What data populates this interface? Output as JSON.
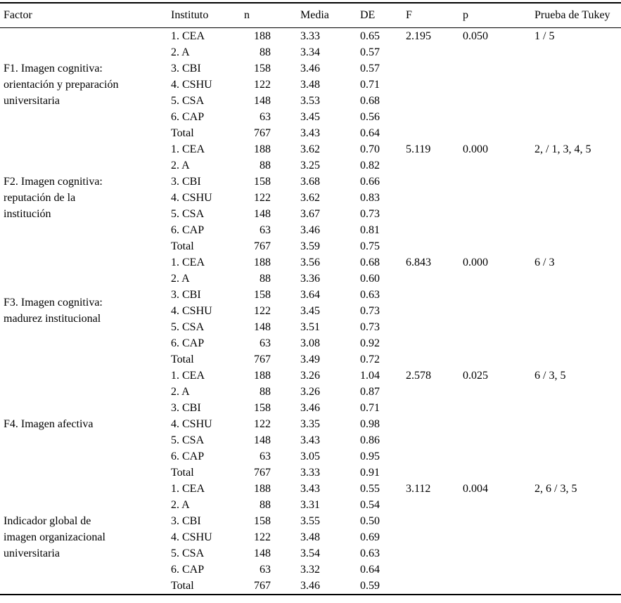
{
  "table": {
    "headers": [
      "Factor",
      "Instituto",
      "n",
      "Media",
      "DE",
      "F",
      "p",
      "Prueba de Tukey"
    ],
    "groups": [
      {
        "factor_lines": [
          "F1. Imagen cognitiva:",
          "orientación y preparación",
          "universitaria"
        ],
        "f": "2.195",
        "p": "0.050",
        "tukey": "1 / 5",
        "rows": [
          {
            "instituto": "1. CEA",
            "n": "188",
            "media": "3.33",
            "de": "0.65"
          },
          {
            "instituto": "2. A",
            "n": "88",
            "media": "3.34",
            "de": "0.57"
          },
          {
            "instituto": "3. CBI",
            "n": "158",
            "media": "3.46",
            "de": "0.57"
          },
          {
            "instituto": "4. CSHU",
            "n": "122",
            "media": "3.48",
            "de": "0.71"
          },
          {
            "instituto": "5. CSA",
            "n": "148",
            "media": "3.53",
            "de": "0.68"
          },
          {
            "instituto": "6. CAP",
            "n": "63",
            "media": "3.45",
            "de": "0.56"
          },
          {
            "instituto": "Total",
            "n": "767",
            "media": "3.43",
            "de": "0.64"
          }
        ]
      },
      {
        "factor_lines": [
          "F2. Imagen cognitiva:",
          "reputación de la",
          "institución"
        ],
        "f": "5.119",
        "p": "0.000",
        "tukey": "2, / 1, 3, 4, 5",
        "rows": [
          {
            "instituto": "1. CEA",
            "n": "188",
            "media": "3.62",
            "de": "0.70"
          },
          {
            "instituto": "2. A",
            "n": "88",
            "media": "3.25",
            "de": "0.82"
          },
          {
            "instituto": "3. CBI",
            "n": "158",
            "media": "3.68",
            "de": "0.66"
          },
          {
            "instituto": "4. CSHU",
            "n": "122",
            "media": "3.62",
            "de": "0.83"
          },
          {
            "instituto": "5. CSA",
            "n": "148",
            "media": "3.67",
            "de": "0.73"
          },
          {
            "instituto": "6. CAP",
            "n": "63",
            "media": "3.46",
            "de": "0.81"
          },
          {
            "instituto": "Total",
            "n": "767",
            "media": "3.59",
            "de": "0.75"
          }
        ]
      },
      {
        "factor_lines": [
          "F3. Imagen cognitiva:",
          "madurez institucional"
        ],
        "f": "6.843",
        "p": "0.000",
        "tukey": "6 / 3",
        "rows": [
          {
            "instituto": "1. CEA",
            "n": "188",
            "media": "3.56",
            "de": "0.68"
          },
          {
            "instituto": "2. A",
            "n": "88",
            "media": "3.36",
            "de": "0.60"
          },
          {
            "instituto": "3. CBI",
            "n": "158",
            "media": "3.64",
            "de": "0.63"
          },
          {
            "instituto": "4. CSHU",
            "n": "122",
            "media": "3.45",
            "de": "0.73"
          },
          {
            "instituto": "5. CSA",
            "n": "148",
            "media": "3.51",
            "de": "0.73"
          },
          {
            "instituto": "6. CAP",
            "n": "63",
            "media": "3.08",
            "de": "0.92"
          },
          {
            "instituto": "Total",
            "n": "767",
            "media": "3.49",
            "de": "0.72"
          }
        ]
      },
      {
        "factor_lines": [
          "F4. Imagen afectiva"
        ],
        "f": "2.578",
        "p": "0.025",
        "tukey": "6 / 3, 5",
        "rows": [
          {
            "instituto": "1. CEA",
            "n": "188",
            "media": "3.26",
            "de": "1.04"
          },
          {
            "instituto": "2. A",
            "n": "88",
            "media": "3.26",
            "de": "0.87"
          },
          {
            "instituto": "3. CBI",
            "n": "158",
            "media": "3.46",
            "de": "0.71"
          },
          {
            "instituto": "4. CSHU",
            "n": "122",
            "media": "3.35",
            "de": "0.98"
          },
          {
            "instituto": "5. CSA",
            "n": "148",
            "media": "3.43",
            "de": "0.86"
          },
          {
            "instituto": "6. CAP",
            "n": "63",
            "media": "3.05",
            "de": "0.95"
          },
          {
            "instituto": "Total",
            "n": "767",
            "media": "3.33",
            "de": "0.91"
          }
        ]
      },
      {
        "factor_lines": [
          "Indicador global de",
          "imagen organizacional",
          "universitaria"
        ],
        "f": "3.112",
        "p": "0.004",
        "tukey": "2, 6 / 3, 5",
        "rows": [
          {
            "instituto": "1. CEA",
            "n": "188",
            "media": "3.43",
            "de": "0.55"
          },
          {
            "instituto": "2. A",
            "n": "88",
            "media": "3.31",
            "de": "0.54"
          },
          {
            "instituto": "3. CBI",
            "n": "158",
            "media": "3.55",
            "de": "0.50"
          },
          {
            "instituto": "4. CSHU",
            "n": "122",
            "media": "3.48",
            "de": "0.69"
          },
          {
            "instituto": "5. CSA",
            "n": "148",
            "media": "3.54",
            "de": "0.63"
          },
          {
            "instituto": "6. CAP",
            "n": "63",
            "media": "3.32",
            "de": "0.64"
          },
          {
            "instituto": "Total",
            "n": "767",
            "media": "3.46",
            "de": "0.59"
          }
        ]
      }
    ]
  },
  "colors": {
    "text": "#000000",
    "background": "#ffffff",
    "rule": "#000000"
  }
}
